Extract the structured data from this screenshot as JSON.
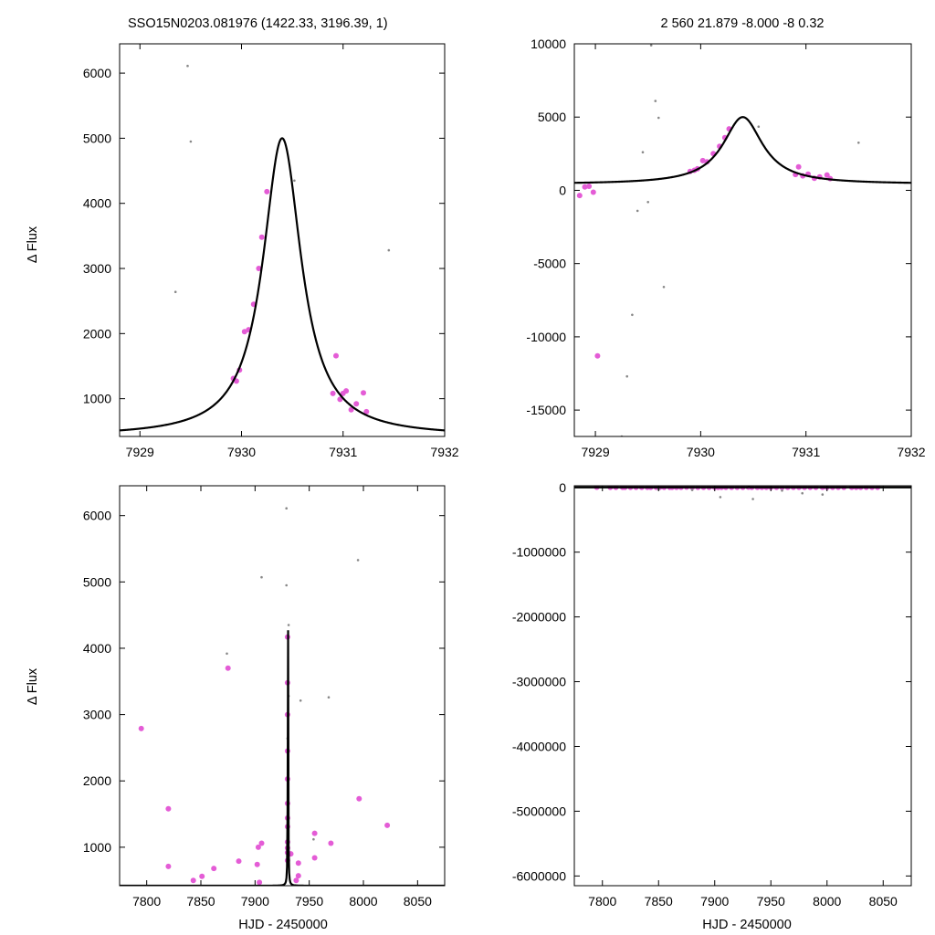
{
  "colors": {
    "good": "#e45cd6",
    "bad": "#888888",
    "model": "#000000",
    "axis": "#000000"
  },
  "figure": {
    "title_left": "SSO15N0203.081976 (1422.33, 3196.39,    1)",
    "title_right": "2   560   21.879   -8.000   -8  0.32",
    "ylabel": "Δ Flux",
    "xlabel": "HJD - 2450000"
  },
  "chart_data": [
    {
      "type": "scatter",
      "panel": "top-left",
      "xlim": [
        7928.8,
        7932
      ],
      "ylim": [
        420,
        6450
      ],
      "xticks": [
        7929,
        7930,
        7931,
        7932
      ],
      "yticks": [
        1000,
        2000,
        3000,
        4000,
        5000,
        6000
      ],
      "model": {
        "t0": 7930.4,
        "base": 420,
        "peak": 5000,
        "tE": 0.23
      },
      "series": [
        {
          "role": "good",
          "points": [
            [
              7929.92,
              1310
            ],
            [
              7929.95,
              1270
            ],
            [
              7929.98,
              1440
            ],
            [
              7930.03,
              2030
            ],
            [
              7930.07,
              2060
            ],
            [
              7930.12,
              2450
            ],
            [
              7930.17,
              3000
            ],
            [
              7930.2,
              3480
            ],
            [
              7930.25,
              4180
            ],
            [
              7930.9,
              1080
            ],
            [
              7930.93,
              1660
            ],
            [
              7930.97,
              990
            ],
            [
              7931.0,
              1080
            ],
            [
              7931.03,
              1120
            ],
            [
              7931.08,
              830
            ],
            [
              7931.13,
              920
            ],
            [
              7931.2,
              1090
            ],
            [
              7931.23,
              800
            ]
          ]
        },
        {
          "role": "bad",
          "points": [
            [
              7929.35,
              2640
            ],
            [
              7929.47,
              6110
            ],
            [
              7929.5,
              4950
            ],
            [
              7930.52,
              4350
            ],
            [
              7931.45,
              3280
            ]
          ]
        }
      ]
    },
    {
      "type": "scatter",
      "panel": "top-right",
      "xlim": [
        7928.8,
        7932
      ],
      "ylim": [
        -16800,
        10000
      ],
      "xticks": [
        7929,
        7930,
        7931,
        7932
      ],
      "yticks": [
        10000,
        5000,
        0,
        -5000,
        -10000,
        -15000
      ],
      "model": {
        "t0": 7930.4,
        "base": 420,
        "peak": 5000,
        "tE": 0.23
      },
      "series": [
        {
          "role": "good",
          "points": [
            [
              7928.85,
              -350
            ],
            [
              7928.9,
              230
            ],
            [
              7928.94,
              280
            ],
            [
              7928.98,
              -130
            ],
            [
              7929.02,
              -11300
            ],
            [
              7929.9,
              1290
            ],
            [
              7929.94,
              1370
            ],
            [
              7929.97,
              1470
            ],
            [
              7930.02,
              2030
            ],
            [
              7930.06,
              1940
            ],
            [
              7930.12,
              2500
            ],
            [
              7930.18,
              3000
            ],
            [
              7930.23,
              3600
            ],
            [
              7930.27,
              4200
            ],
            [
              7930.9,
              1080
            ],
            [
              7930.93,
              1600
            ],
            [
              7930.97,
              990
            ],
            [
              7931.02,
              1100
            ],
            [
              7931.08,
              820
            ],
            [
              7931.13,
              920
            ],
            [
              7931.2,
              1050
            ],
            [
              7931.23,
              800
            ]
          ]
        },
        {
          "role": "bad",
          "points": [
            [
              7929.25,
              -16800
            ],
            [
              7929.3,
              -12700
            ],
            [
              7929.35,
              -8500
            ],
            [
              7929.4,
              -1400
            ],
            [
              7929.45,
              2600
            ],
            [
              7929.5,
              -800
            ],
            [
              7929.53,
              9900
            ],
            [
              7929.57,
              6100
            ],
            [
              7929.6,
              4950
            ],
            [
              7929.65,
              -6600
            ],
            [
              7930.55,
              4350
            ],
            [
              7931.5,
              3250
            ]
          ]
        }
      ]
    },
    {
      "type": "scatter",
      "panel": "bottom-left",
      "xlim": [
        7775,
        8075
      ],
      "ylim": [
        420,
        6450
      ],
      "xticks": [
        7800,
        7850,
        7900,
        7950,
        8000,
        8050
      ],
      "yticks": [
        1000,
        2000,
        3000,
        4000,
        5000,
        6000
      ],
      "model": {
        "t0": 7930.4,
        "base": 420,
        "peak": 5000,
        "tE": 0.23
      },
      "series": [
        {
          "role": "good",
          "points": [
            [
              7795,
              2790
            ],
            [
              7820,
              1580
            ],
            [
              7820,
              710
            ],
            [
              7843,
              500
            ],
            [
              7851,
              560
            ],
            [
              7862,
              680
            ],
            [
              7875,
              3700
            ],
            [
              7885,
              790
            ],
            [
              7902,
              740
            ],
            [
              7903,
              1000
            ],
            [
              7904,
              470
            ],
            [
              7906,
              1060
            ],
            [
              7930,
              4170
            ],
            [
              7930,
              3480
            ],
            [
              7930,
              3000
            ],
            [
              7930,
              2450
            ],
            [
              7930,
              2030
            ],
            [
              7930,
              1660
            ],
            [
              7930,
              1440
            ],
            [
              7930,
              1310
            ],
            [
              7930,
              1080
            ],
            [
              7930,
              990
            ],
            [
              7930,
              920
            ],
            [
              7930,
              800
            ],
            [
              7933,
              900
            ],
            [
              7938,
              500
            ],
            [
              7940,
              570
            ],
            [
              7940,
              760
            ],
            [
              7955,
              1210
            ],
            [
              7955,
              840
            ],
            [
              7970,
              1060
            ],
            [
              7996,
              1730
            ],
            [
              8022,
              1330
            ]
          ]
        },
        {
          "role": "bad",
          "points": [
            [
              7874,
              3920
            ],
            [
              7906,
              5070
            ],
            [
              7929,
              6110
            ],
            [
              7929,
              4950
            ],
            [
              7931,
              4350
            ],
            [
              7931,
              3280
            ],
            [
              7930,
              2640
            ],
            [
              7942,
              3210
            ],
            [
              7954,
              1120
            ],
            [
              7968,
              3260
            ],
            [
              7995,
              5330
            ]
          ]
        }
      ]
    },
    {
      "type": "scatter",
      "panel": "bottom-right",
      "xlim": [
        7775,
        8075
      ],
      "ylim": [
        -6150000,
        25000
      ],
      "xticks": [
        7800,
        7850,
        7900,
        7950,
        8000,
        8050
      ],
      "yticks": [
        0,
        -1000000,
        -2000000,
        -3000000,
        -4000000,
        -5000000,
        -6000000
      ],
      "model": {
        "t0": 7930.4,
        "base": 420,
        "peak": 5000,
        "tE": 0.23
      },
      "series": [
        {
          "role": "good",
          "points": [
            [
              7795,
              2790
            ],
            [
              7807,
              600
            ],
            [
              7812,
              900
            ],
            [
              7818,
              400
            ],
            [
              7820,
              1580
            ],
            [
              7825,
              700
            ],
            [
              7830,
              500
            ],
            [
              7835,
              800
            ],
            [
              7840,
              300
            ],
            [
              7843,
              500
            ],
            [
              7848,
              700
            ],
            [
              7851,
              560
            ],
            [
              7855,
              900
            ],
            [
              7860,
              400
            ],
            [
              7862,
              680
            ],
            [
              7866,
              800
            ],
            [
              7870,
              500
            ],
            [
              7875,
              3700
            ],
            [
              7880,
              600
            ],
            [
              7885,
              790
            ],
            [
              7890,
              700
            ],
            [
              7895,
              900
            ],
            [
              7900,
              500
            ],
            [
              7903,
              1000
            ],
            [
              7906,
              1060
            ],
            [
              7910,
              800
            ],
            [
              7915,
              700
            ],
            [
              7920,
              900
            ],
            [
              7925,
              600
            ],
            [
              7930,
              4170
            ],
            [
              7933,
              900
            ],
            [
              7938,
              500
            ],
            [
              7942,
              760
            ],
            [
              7946,
              800
            ],
            [
              7950,
              700
            ],
            [
              7955,
              1210
            ],
            [
              7960,
              600
            ],
            [
              7965,
              900
            ],
            [
              7970,
              1060
            ],
            [
              7975,
              800
            ],
            [
              7980,
              500
            ],
            [
              7985,
              900
            ],
            [
              7990,
              700
            ],
            [
              7996,
              1730
            ],
            [
              8000,
              600
            ],
            [
              8005,
              900
            ],
            [
              8010,
              700
            ],
            [
              8015,
              500
            ],
            [
              8022,
              1330
            ],
            [
              8026,
              800
            ],
            [
              8030,
              600
            ],
            [
              8035,
              900
            ],
            [
              8040,
              700
            ],
            [
              8045,
              500
            ]
          ]
        },
        {
          "role": "bad",
          "points": [
            [
              7905,
              -150000
            ],
            [
              7934,
              -180000
            ],
            [
              7978,
              -90000
            ],
            [
              7996,
              -110000
            ],
            [
              7850,
              -30000
            ],
            [
              7880,
              -40000
            ],
            [
              7960,
              -50000
            ]
          ]
        }
      ]
    }
  ]
}
